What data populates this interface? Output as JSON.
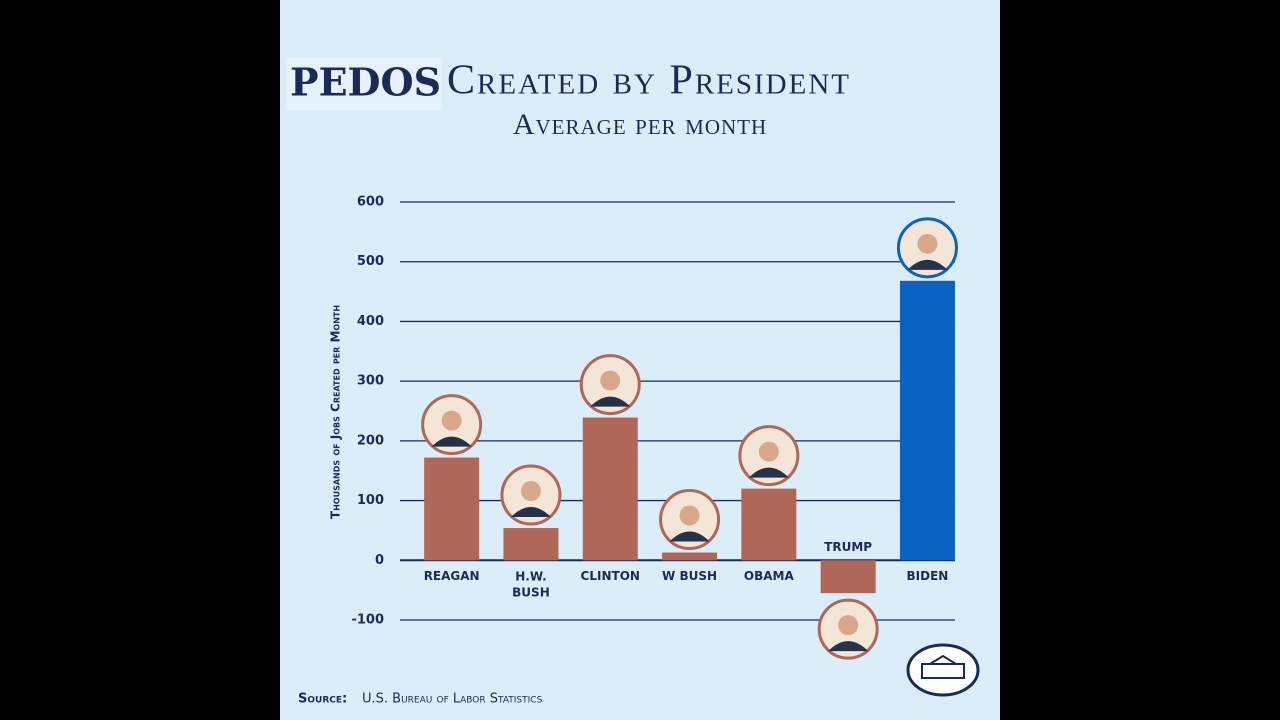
{
  "chart_data": {
    "type": "bar",
    "overlay_title": "PEDOS",
    "title": "Created by President",
    "subtitle": "Average per month",
    "y_label": "Thousands of Jobs Created per Month",
    "categories": [
      "REAGAN",
      "H.W. BUSH",
      "CLINTON",
      "W BUSH",
      "OBAMA",
      "TRUMP",
      "BIDEN"
    ],
    "values": [
      172,
      54,
      239,
      13,
      120,
      -55,
      468
    ],
    "colors": [
      "#b06758",
      "#b06758",
      "#b06758",
      "#b06758",
      "#b06758",
      "#b06758",
      "#0a62c2"
    ],
    "ylim": [
      -100,
      600
    ],
    "yticks": [
      {
        "value": -100,
        "label": "-100"
      },
      0,
      100,
      200,
      300,
      400,
      500,
      600
    ],
    "grid": true,
    "source_label": "Source:",
    "source": "U.S. Bureau of Labor Statistics"
  }
}
